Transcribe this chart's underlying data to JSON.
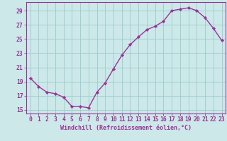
{
  "x": [
    0,
    1,
    2,
    3,
    4,
    5,
    6,
    7,
    8,
    9,
    10,
    11,
    12,
    13,
    14,
    15,
    16,
    17,
    18,
    19,
    20,
    21,
    22,
    23
  ],
  "y": [
    19.5,
    18.3,
    17.5,
    17.3,
    16.8,
    15.5,
    15.5,
    15.3,
    17.5,
    18.8,
    20.8,
    22.7,
    24.2,
    25.3,
    26.3,
    26.8,
    27.5,
    29.0,
    29.2,
    29.4,
    29.0,
    28.0,
    26.5,
    24.8
  ],
  "line_color": "#993399",
  "marker": "D",
  "marker_size": 2.2,
  "bg_color": "#cce8e8",
  "grid_color": "#99cccc",
  "axis_color": "#993399",
  "tick_color": "#993399",
  "xlabel": "Windchill (Refroidissement éolien,°C)",
  "xlabel_fontsize": 6.0,
  "xtick_labels": [
    "0",
    "1",
    "2",
    "3",
    "4",
    "5",
    "6",
    "7",
    "8",
    "9",
    "10",
    "11",
    "12",
    "13",
    "14",
    "15",
    "16",
    "17",
    "18",
    "19",
    "20",
    "21",
    "22",
    "23"
  ],
  "ytick_labels": [
    "15",
    "17",
    "19",
    "21",
    "23",
    "25",
    "27",
    "29"
  ],
  "yticks": [
    15,
    17,
    19,
    21,
    23,
    25,
    27,
    29
  ],
  "ylim": [
    14.5,
    30.2
  ],
  "xlim": [
    -0.5,
    23.5
  ],
  "tick_fontsize": 5.8,
  "linewidth": 1.0
}
